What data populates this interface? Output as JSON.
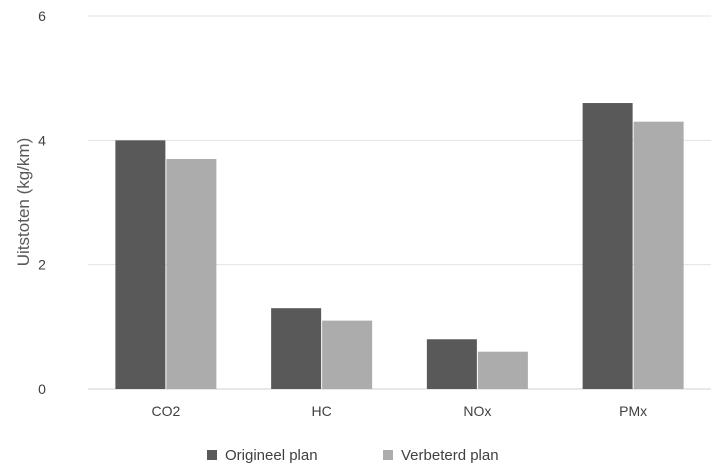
{
  "chart_data": {
    "type": "bar",
    "title": "",
    "xlabel": "",
    "ylabel": "Uitstoten (kg/km)",
    "categories": [
      "CO2",
      "HC",
      "NOx",
      "PMx"
    ],
    "series": [
      {
        "name": "Origineel plan",
        "values": [
          4.0,
          1.3,
          0.8,
          4.6
        ],
        "color": "#595959"
      },
      {
        "name": "Verbeterd plan",
        "values": [
          3.7,
          1.1,
          0.6,
          4.3
        ],
        "color": "#acacac"
      }
    ],
    "ylim": [
      0,
      6
    ],
    "yticks": [
      "0",
      "2",
      "4",
      "6"
    ],
    "grid": true,
    "legend": "bottom-center"
  }
}
